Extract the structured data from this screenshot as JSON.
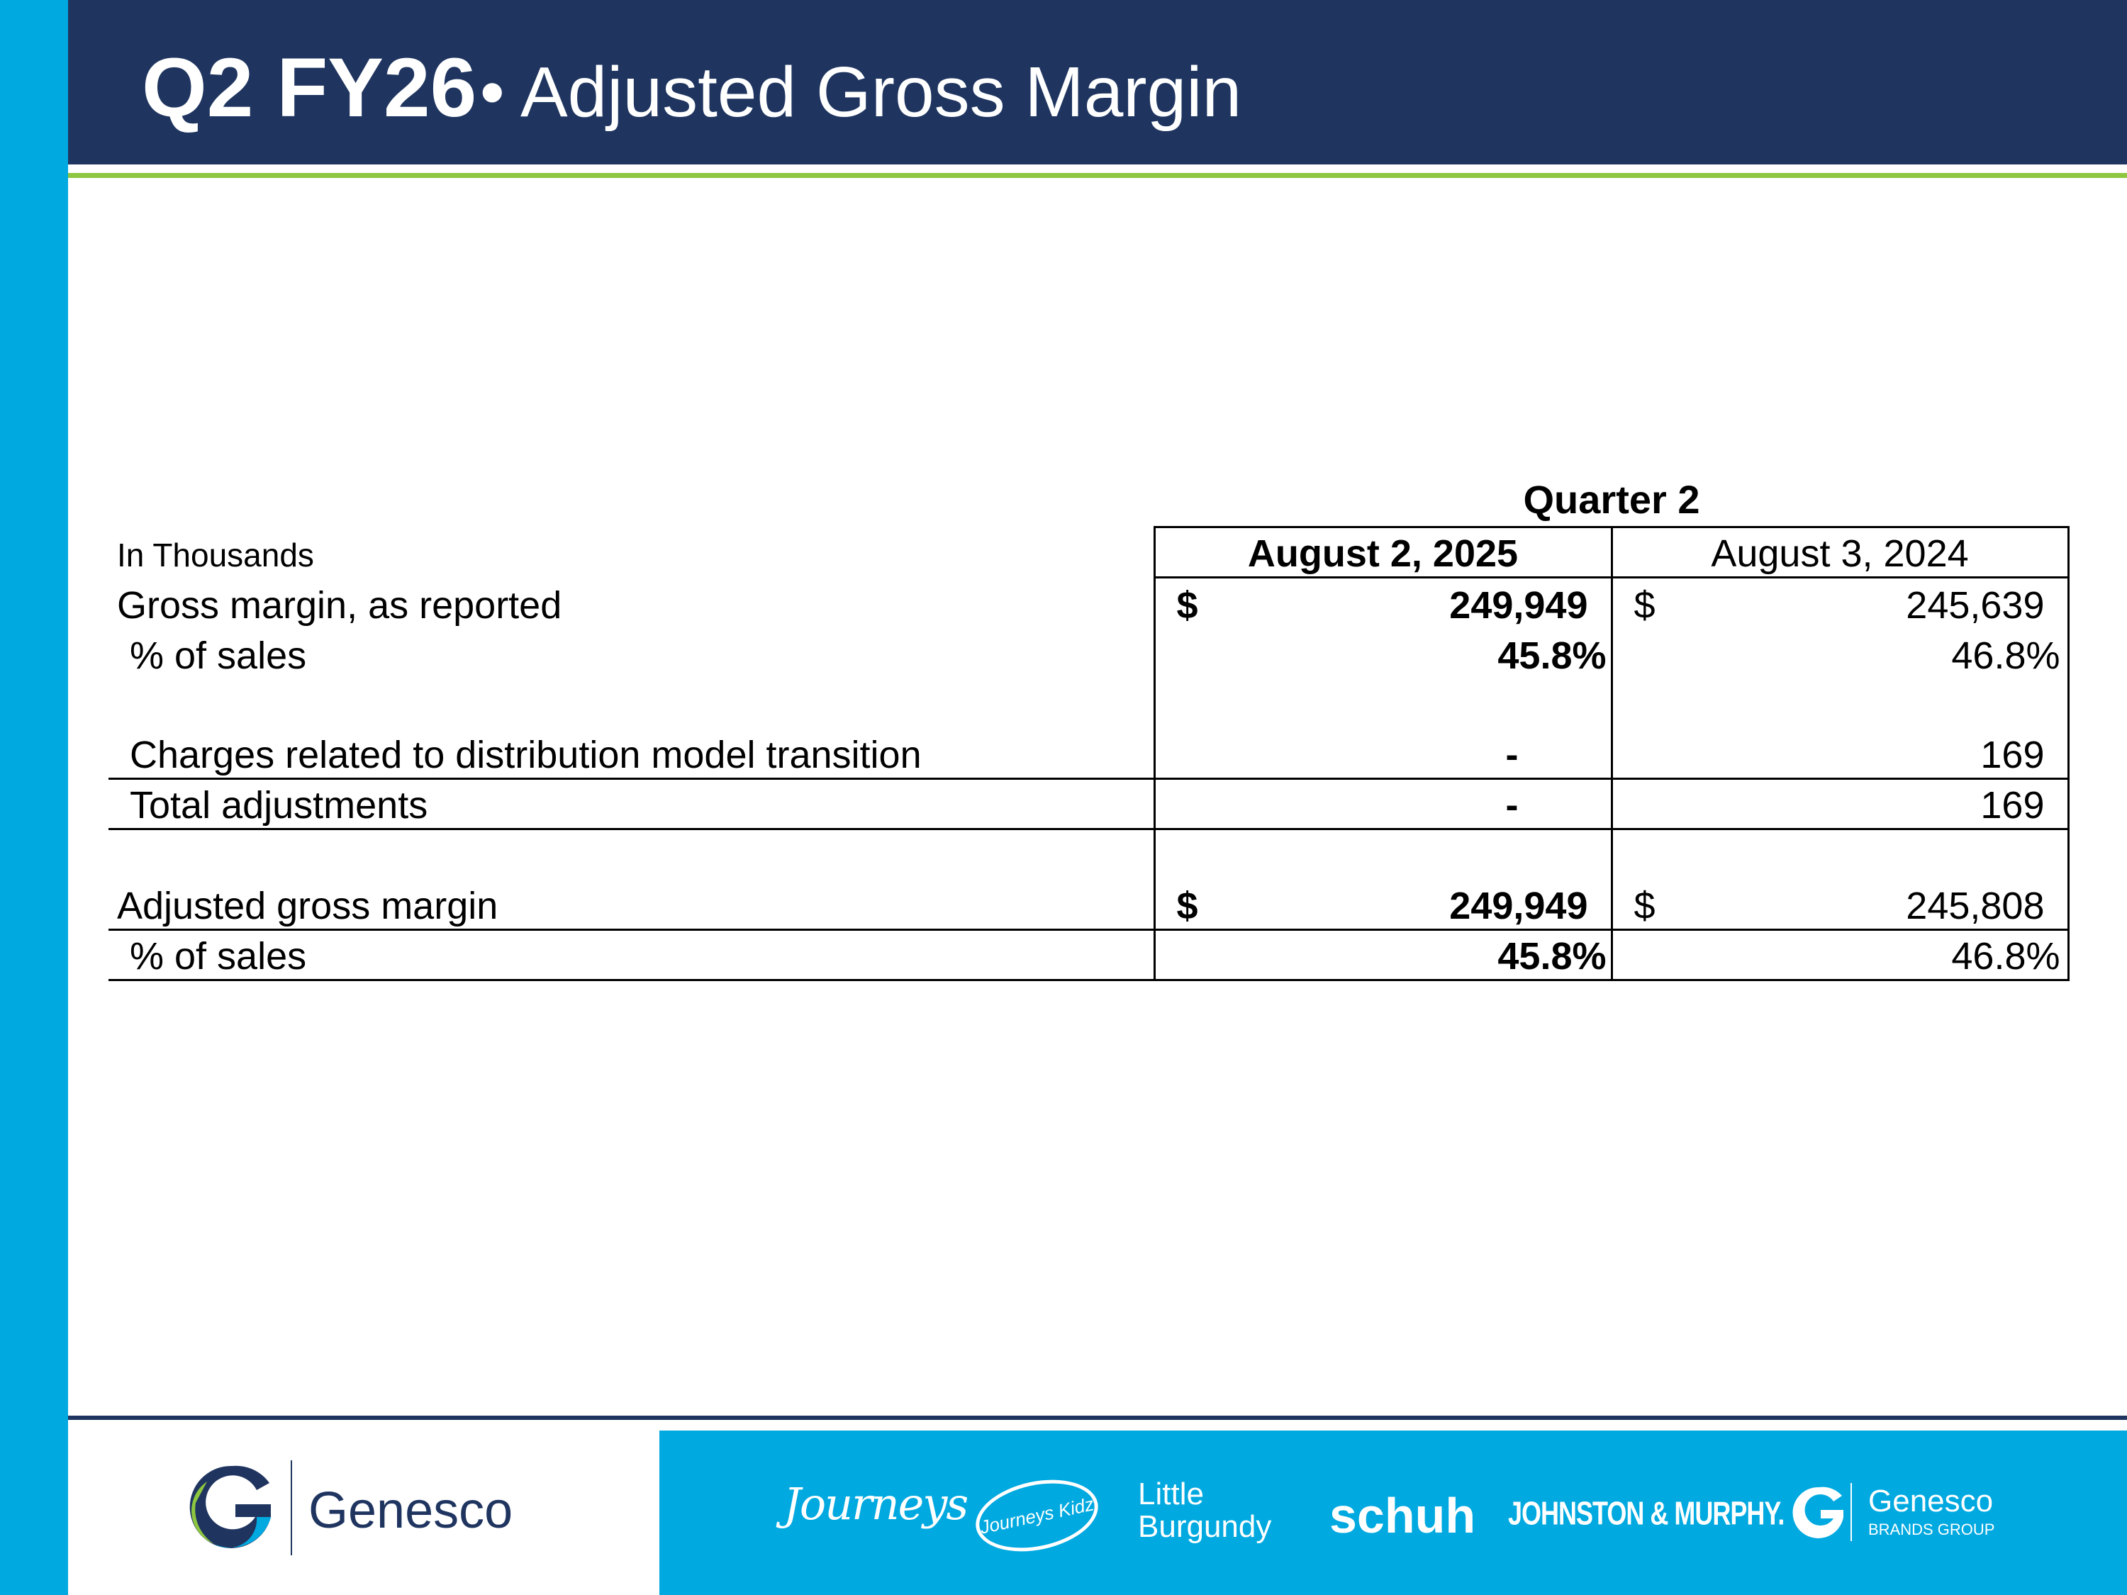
{
  "header": {
    "title_bold": "Q2 FY26",
    "title_rest": "• Adjusted Gross Margin"
  },
  "table": {
    "group_header": "Quarter 2",
    "units_label": "In Thousands",
    "columns": [
      "August 2, 2025",
      "August 3, 2024"
    ],
    "currency_symbol": "$",
    "rows": {
      "gross_margin": {
        "label": "Gross margin, as reported",
        "c1": "249,949",
        "c2": "245,639"
      },
      "gross_pct": {
        "label": "% of sales",
        "c1": "45.8%",
        "c2": "46.8%"
      },
      "charges": {
        "label": "Charges related to distribution model transition",
        "c1": "-",
        "c2": "169"
      },
      "total_adj": {
        "label": "Total adjustments",
        "c1": "-",
        "c2": "169"
      },
      "adj_margin": {
        "label": "Adjusted gross margin",
        "c1": "249,949",
        "c2": "245,808"
      },
      "adj_pct": {
        "label": "% of sales",
        "c1": "45.8%",
        "c2": "46.8%"
      }
    }
  },
  "footer": {
    "company": "Genesco",
    "brands": {
      "journeys": "Journeys",
      "journeys_kidz": "Journeys Kidz",
      "little_burgundy_1": "Little",
      "little_burgundy_2": "Burgundy",
      "schuh": "schuh",
      "johnston_murphy": "JOHNSTON & MURPHY.",
      "genesco_bg": "Genesco",
      "genesco_bg_sub": "BRANDS GROUP"
    }
  },
  "colors": {
    "navy": "#1f3560",
    "cyan": "#00a9e0",
    "green": "#8dc63f"
  }
}
